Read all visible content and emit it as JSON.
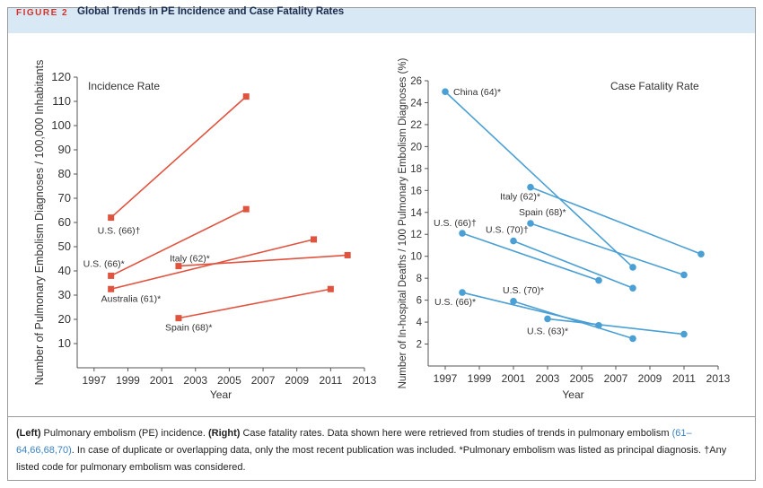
{
  "figure": {
    "label": "FIGURE 2",
    "title": "Global Trends in PE Incidence and Case Fatality Rates"
  },
  "colors": {
    "left_series": "#e0533f",
    "right_series": "#4a9fd4",
    "header_bg": "#d9e8f5",
    "accent": "#d2342a"
  },
  "chart_data": [
    {
      "type": "line",
      "title": "Incidence Rate",
      "xlabel": "Year",
      "ylabel": "Number of Pulmonary Embolism Diagnoses / 100,000 Inhabitants",
      "xlim": [
        1996,
        2013
      ],
      "ylim": [
        0,
        120
      ],
      "xticks": [
        1997,
        1999,
        2001,
        2003,
        2005,
        2007,
        2009,
        2011,
        2013
      ],
      "yticks": [
        10,
        20,
        30,
        40,
        50,
        60,
        70,
        80,
        90,
        100,
        110,
        120
      ],
      "marker": "square",
      "grid": false,
      "series": [
        {
          "name": "U.S. (66)†",
          "points": [
            [
              1998,
              62
            ],
            [
              2006,
              112
            ]
          ]
        },
        {
          "name": "U.S. (66)*",
          "points": [
            [
              1998,
              38
            ],
            [
              2006,
              65.5
            ]
          ]
        },
        {
          "name": "Australia (61)*",
          "points": [
            [
              1998,
              32.5
            ],
            [
              2010,
              53
            ]
          ]
        },
        {
          "name": "Italy (62)*",
          "points": [
            [
              2002,
              42
            ],
            [
              2012,
              46.5
            ]
          ]
        },
        {
          "name": "Spain (68)*",
          "points": [
            [
              2002,
              20.5
            ],
            [
              2011,
              32.5
            ]
          ]
        }
      ]
    },
    {
      "type": "line",
      "title": "Case Fatality Rate",
      "xlabel": "Year",
      "ylabel": "Number of In-hospital Deaths / 100 Pulmonary Embolism Diagnoses (%)",
      "xlim": [
        1996,
        2013
      ],
      "ylim": [
        0,
        26
      ],
      "xticks": [
        1997,
        1999,
        2001,
        2003,
        2005,
        2007,
        2009,
        2011,
        2013
      ],
      "yticks": [
        2,
        4,
        6,
        8,
        10,
        12,
        14,
        16,
        18,
        20,
        22,
        24,
        26
      ],
      "marker": "circle",
      "grid": false,
      "series": [
        {
          "name": "China (64)*",
          "points": [
            [
              1997,
              25
            ],
            [
              2008,
              9
            ]
          ]
        },
        {
          "name": "Italy (62)*",
          "points": [
            [
              2002,
              16.3
            ],
            [
              2012,
              10.2
            ]
          ]
        },
        {
          "name": "Spain (68)*",
          "points": [
            [
              2002,
              13
            ],
            [
              2011,
              8.3
            ]
          ]
        },
        {
          "name": "U.S. (66)†",
          "points": [
            [
              1998,
              12.1
            ],
            [
              2006,
              7.8
            ]
          ]
        },
        {
          "name": "U.S. (70)†",
          "points": [
            [
              2001,
              11.4
            ],
            [
              2008,
              7.1
            ]
          ]
        },
        {
          "name": "U.S. (70)*",
          "points": [
            [
              2001,
              5.9
            ],
            [
              2008,
              2.5
            ]
          ]
        },
        {
          "name": "U.S. (66)*",
          "points": [
            [
              1998,
              6.7
            ],
            [
              2006,
              3.7
            ]
          ]
        },
        {
          "name": "U.S. (63)*",
          "points": [
            [
              2003,
              4.3
            ],
            [
              2011,
              2.9
            ]
          ]
        }
      ]
    }
  ],
  "caption": {
    "left_bold": "(Left)",
    "left_text": " Pulmonary embolism (PE) incidence. ",
    "right_bold": "(Right)",
    "right_text": " Case fatality rates. Data shown here were retrieved from studies of trends in pulmonary embolism ",
    "refs": "(61–64,66,68,70)",
    "rest": ". In case of duplicate or overlapping data, only the most recent publication was included. *Pulmonary embolism was listed as principal diagnosis. †Any listed code for pulmonary embolism was considered."
  }
}
